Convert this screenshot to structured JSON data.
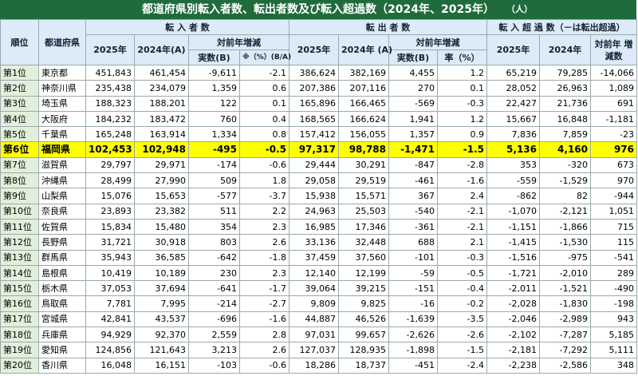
{
  "header": {
    "title": "都道府県別転入者数、転出者数及び転入超過数（2024年、2025年）",
    "unit": "（人）"
  },
  "table": {
    "head": {
      "rank": "順位",
      "pref": "都道府県",
      "in_group": "転 入 者 数",
      "out_group": "転 出 者 数",
      "net_group": "転 入 超 過 数（－は転出超過）",
      "in_2025": "2025年",
      "in_2024": "2024年(A)",
      "in_diff": "対前年増減",
      "in_num": "実数(B)",
      "in_rate": "※（%）(B/A)",
      "out_2025": "2025年",
      "out_2024": "2024年 (A)",
      "out_diff": "対前年増減",
      "out_num": "実数(B)",
      "out_rate": "率（%）",
      "net_2025": "2025年",
      "net_2024": "2024年",
      "net_diff": "対前年 増減数"
    },
    "rows": [
      [
        "第1位",
        "東京都",
        "451,843",
        "461,454",
        "-9,611",
        "-2.1",
        "386,624",
        "382,169",
        "4,455",
        "1.2",
        "65,219",
        "79,285",
        "-14,066"
      ],
      [
        "第2位",
        "神奈川県",
        "235,438",
        "234,079",
        "1,359",
        "0.6",
        "207,386",
        "207,116",
        "270",
        "0.1",
        "28,052",
        "26,963",
        "1,089"
      ],
      [
        "第3位",
        "埼玉県",
        "188,323",
        "188,201",
        "122",
        "0.1",
        "165,896",
        "166,465",
        "-569",
        "-0.3",
        "22,427",
        "21,736",
        "691"
      ],
      [
        "第4位",
        "大阪府",
        "184,232",
        "183,472",
        "760",
        "0.4",
        "168,565",
        "166,624",
        "1,941",
        "1.2",
        "15,667",
        "16,848",
        "-1,181"
      ],
      [
        "第5位",
        "千葉県",
        "165,248",
        "163,914",
        "1,334",
        "0.8",
        "157,412",
        "156,055",
        "1,357",
        "0.9",
        "7,836",
        "7,859",
        "-23"
      ],
      [
        "第6位",
        "福岡県",
        "102,453",
        "102,948",
        "-495",
        "-0.5",
        "97,317",
        "98,788",
        "-1,471",
        "-1.5",
        "5,136",
        "4,160",
        "976"
      ],
      [
        "第7位",
        "滋賀県",
        "29,797",
        "29,971",
        "-174",
        "-0.6",
        "29,444",
        "30,291",
        "-847",
        "-2.8",
        "353",
        "-320",
        "673"
      ],
      [
        "第8位",
        "沖縄県",
        "28,499",
        "27,990",
        "509",
        "1.8",
        "29,058",
        "29,519",
        "-461",
        "-1.6",
        "-559",
        "-1,529",
        "970"
      ],
      [
        "第9位",
        "山梨県",
        "15,076",
        "15,653",
        "-577",
        "-3.7",
        "15,938",
        "15,571",
        "367",
        "2.4",
        "-862",
        "82",
        "-944"
      ],
      [
        "第10位",
        "奈良県",
        "23,893",
        "23,382",
        "511",
        "2.2",
        "24,963",
        "25,503",
        "-540",
        "-2.1",
        "-1,070",
        "-2,121",
        "1,051"
      ],
      [
        "第11位",
        "佐賀県",
        "15,834",
        "15,480",
        "354",
        "2.3",
        "16,985",
        "17,346",
        "-361",
        "-2.1",
        "-1,151",
        "-1,866",
        "715"
      ],
      [
        "第12位",
        "長野県",
        "31,721",
        "30,918",
        "803",
        "2.6",
        "33,136",
        "32,448",
        "688",
        "2.1",
        "-1,415",
        "-1,530",
        "115"
      ],
      [
        "第13位",
        "群馬県",
        "35,943",
        "36,585",
        "-642",
        "-1.8",
        "37,459",
        "37,560",
        "-101",
        "-0.3",
        "-1,516",
        "-975",
        "-541"
      ],
      [
        "第14位",
        "島根県",
        "10,419",
        "10,189",
        "230",
        "2.3",
        "12,140",
        "12,199",
        "-59",
        "-0.5",
        "-1,721",
        "-2,010",
        "289"
      ],
      [
        "第15位",
        "栃木県",
        "37,053",
        "37,694",
        "-641",
        "-1.7",
        "39,064",
        "39,215",
        "-151",
        "-0.4",
        "-2,011",
        "-1,521",
        "-490"
      ],
      [
        "第16位",
        "鳥取県",
        "7,781",
        "7,995",
        "-214",
        "-2.7",
        "9,809",
        "9,825",
        "-16",
        "-0.2",
        "-2,028",
        "-1,830",
        "-198"
      ],
      [
        "第17位",
        "宮城県",
        "42,841",
        "43,537",
        "-696",
        "-1.6",
        "44,887",
        "46,526",
        "-1,639",
        "-3.5",
        "-2,046",
        "-2,989",
        "943"
      ],
      [
        "第18位",
        "兵庫県",
        "94,929",
        "92,370",
        "2,559",
        "2.8",
        "97,031",
        "99,657",
        "-2,626",
        "-2.6",
        "-2,102",
        "-7,287",
        "5,185"
      ],
      [
        "第19位",
        "愛知県",
        "124,856",
        "121,643",
        "3,213",
        "2.6",
        "127,037",
        "128,935",
        "-1,898",
        "-1.5",
        "-2,181",
        "-7,292",
        "5,111"
      ],
      [
        "第20位",
        "香川県",
        "16,048",
        "16,151",
        "-103",
        "-0.6",
        "18,286",
        "18,737",
        "-451",
        "-2.4",
        "-2,238",
        "-2,586",
        "348"
      ]
    ]
  }
}
